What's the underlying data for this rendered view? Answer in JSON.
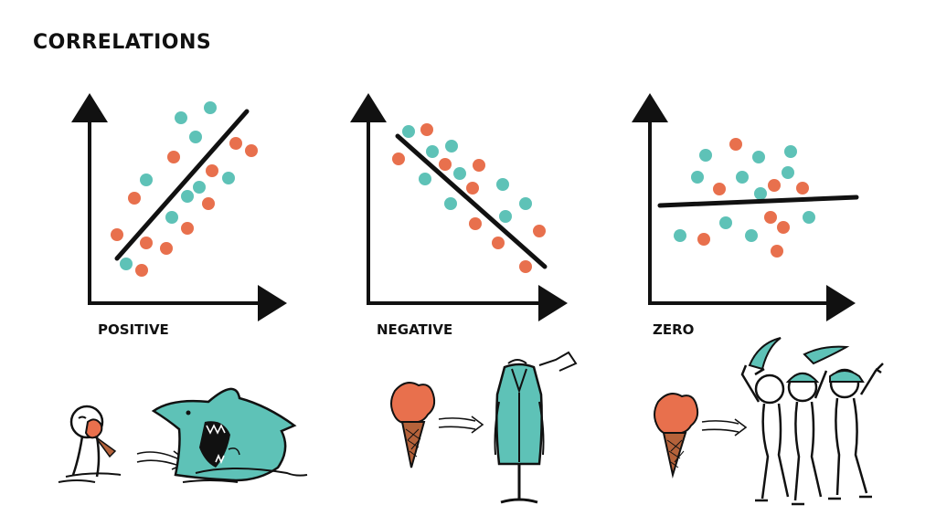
{
  "title": "CORRELATIONS",
  "colors": {
    "teal": "#5ec2b7",
    "orange": "#e8704d",
    "ink": "#111111",
    "cone": "#b5623a"
  },
  "panels": [
    {
      "label": "POSITIVE",
      "trend": "positive",
      "illustration": "person eating ice cream with arrow pointing to shark"
    },
    {
      "label": "NEGATIVE",
      "trend": "negative",
      "illustration": "ice cream with arrow pointing to coat on stand"
    },
    {
      "label": "ZERO",
      "trend": "none",
      "illustration": "ice cream with arrow pointing to angry pirates"
    }
  ]
}
